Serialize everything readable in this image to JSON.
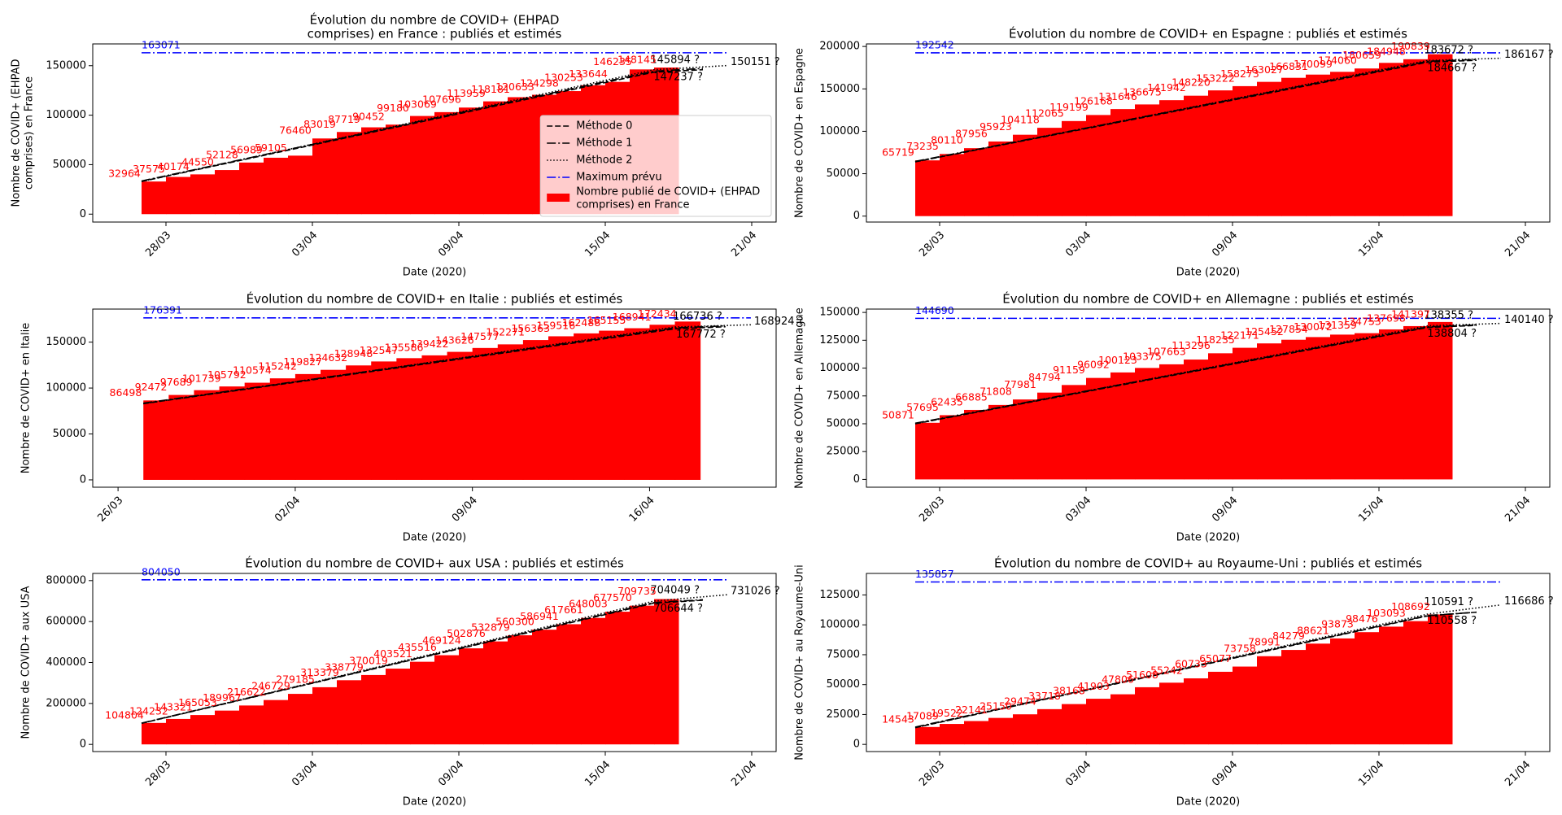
{
  "chart_data": [
    {
      "type": "bar",
      "title": [
        "Évolution du nombre de COVID+ (EHPAD",
        "comprises) en France : publiés et estimés"
      ],
      "xlabel": "Date (2020)",
      "ylabel": [
        "Nombre de COVID+ (EHPAD",
        "comprises) en France"
      ],
      "x": [
        "27/03",
        "28/03",
        "29/03",
        "30/03",
        "31/03",
        "01/04",
        "02/04",
        "03/04",
        "04/04",
        "05/04",
        "06/04",
        "07/04",
        "08/04",
        "09/04",
        "10/04",
        "11/04",
        "12/04",
        "13/04",
        "14/04",
        "15/04",
        "16/04",
        "17/04"
      ],
      "xlim": [
        "25/03",
        "22/04"
      ],
      "xticks": [
        "28/03",
        "03/04",
        "09/04",
        "15/04",
        "21/04"
      ],
      "ylim": [
        -8000,
        172000
      ],
      "yticks": [
        0,
        50000,
        100000,
        150000
      ],
      "legend": "center right",
      "max_line": {
        "name": "Maximum prévu",
        "color": "#0000ff",
        "value": 163071,
        "x": [
          "27/03",
          "20/04"
        ]
      },
      "series": [
        {
          "name": [
            "Nombre publié de COVID+ (EHPAD",
            "comprises) en France"
          ],
          "color": "#ff0000",
          "values": [
            32964,
            37575,
            40174,
            44550,
            52128,
            56989,
            59105,
            76460,
            83019,
            87719,
            90452,
            99180,
            103069,
            107696,
            113959,
            118181,
            120633,
            124298,
            130253,
            133644,
            146235,
            148145
          ]
        },
        {
          "name": "Méthode 0",
          "color": "#000000",
          "style": "dashed",
          "x": [
            "27/03",
            "17/04",
            "19/04"
          ],
          "values": [
            33000,
            143500,
            145894
          ],
          "value_labels": [
            null,
            null,
            "145894 ?"
          ]
        },
        {
          "name": "Méthode 1",
          "color": "#000000",
          "style": "dashdot",
          "x": [
            "27/03",
            "17/04",
            "19/04"
          ],
          "values": [
            33500,
            144500,
            147237
          ],
          "value_labels": [
            null,
            null,
            "147237 ?"
          ]
        },
        {
          "name": "Méthode 2",
          "color": "#000000",
          "style": "dotted",
          "x": [
            "27/03",
            "17/04",
            "20/04"
          ],
          "values": [
            33000,
            146000,
            150151
          ],
          "value_labels": [
            null,
            null,
            "150151 ?"
          ]
        }
      ]
    },
    {
      "type": "bar",
      "title": [
        "Évolution du nombre de COVID+  en Espagne : publiés et estimés"
      ],
      "xlabel": "Date (2020)",
      "ylabel": [
        "Nombre de COVID+  en Espagne"
      ],
      "x": [
        "27/03",
        "28/03",
        "29/03",
        "30/03",
        "31/03",
        "01/04",
        "02/04",
        "03/04",
        "04/04",
        "05/04",
        "06/04",
        "07/04",
        "08/04",
        "09/04",
        "10/04",
        "11/04",
        "12/04",
        "13/04",
        "14/04",
        "15/04",
        "16/04",
        "17/04"
      ],
      "xlim": [
        "25/03",
        "22/04"
      ],
      "xticks": [
        "28/03",
        "03/04",
        "09/04",
        "15/04",
        "21/04"
      ],
      "ylim": [
        -7000,
        203000
      ],
      "yticks": [
        0,
        50000,
        100000,
        150000,
        200000
      ],
      "max_line": {
        "name": "Maximum prévu",
        "color": "#0000ff",
        "value": 192542,
        "x": [
          "27/03",
          "20/04"
        ]
      },
      "series": [
        {
          "name": "Nombre publié de COVID+",
          "color": "#ff0000",
          "values": [
            65719,
            73235,
            80110,
            87956,
            95923,
            104118,
            112065,
            119199,
            126168,
            131646,
            136675,
            141942,
            148220,
            153222,
            158273,
            163027,
            166831,
            170099,
            174060,
            180659,
            184948,
            190839
          ]
        },
        {
          "name": "Méthode 0",
          "color": "#000000",
          "style": "dashed",
          "x": [
            "27/03",
            "17/04",
            "19/04"
          ],
          "values": [
            64000,
            181500,
            183672
          ],
          "value_labels": [
            null,
            null,
            "183672 ?"
          ]
        },
        {
          "name": "Méthode 1",
          "color": "#000000",
          "style": "dashdot",
          "x": [
            "27/03",
            "17/04",
            "19/04"
          ],
          "values": [
            64500,
            182500,
            184667
          ],
          "value_labels": [
            null,
            null,
            "184667 ?"
          ]
        },
        {
          "name": "Méthode 2",
          "color": "#000000",
          "style": "dotted",
          "x": [
            "27/03",
            "17/04",
            "20/04"
          ],
          "values": [
            64000,
            183500,
            186167
          ],
          "value_labels": [
            null,
            null,
            "186167 ?"
          ]
        }
      ]
    },
    {
      "type": "bar",
      "title": [
        "Évolution du nombre de COVID+ en Italie : publiés et estimés"
      ],
      "xlabel": "Date (2020)",
      "ylabel": [
        "Nombre de COVID+ en Italie"
      ],
      "x": [
        "27/03",
        "28/03",
        "29/03",
        "30/03",
        "31/03",
        "01/04",
        "02/04",
        "03/04",
        "04/04",
        "05/04",
        "06/04",
        "07/04",
        "08/04",
        "09/04",
        "10/04",
        "11/04",
        "12/04",
        "13/04",
        "14/04",
        "15/04",
        "16/04",
        "17/04"
      ],
      "xlim": [
        "25/03",
        "21/04"
      ],
      "xticks": [
        "26/03",
        "02/04",
        "09/04",
        "16/04"
      ],
      "ylim": [
        -8000,
        186000
      ],
      "yticks": [
        0,
        50000,
        100000,
        150000
      ],
      "max_line": {
        "name": "Maximum prévu",
        "color": "#0000ff",
        "value": 176391,
        "x": [
          "27/03",
          "20/04"
        ]
      },
      "series": [
        {
          "name": "Nombre publié de COVID+",
          "color": "#ff0000",
          "values": [
            86498,
            92472,
            97689,
            101739,
            105792,
            110574,
            115242,
            119827,
            124632,
            128948,
            132547,
            135586,
            139422,
            143626,
            147577,
            152271,
            156363,
            159516,
            162488,
            165155,
            168941,
            172434
          ]
        },
        {
          "name": "Méthode 0",
          "color": "#000000",
          "style": "dashed",
          "x": [
            "27/03",
            "17/04",
            "19/04"
          ],
          "values": [
            83000,
            164500,
            166736
          ],
          "value_labels": [
            null,
            null,
            "166736 ?"
          ]
        },
        {
          "name": "Méthode 1",
          "color": "#000000",
          "style": "dashdot",
          "x": [
            "27/03",
            "17/04",
            "19/04"
          ],
          "values": [
            83500,
            165500,
            167772
          ],
          "value_labels": [
            null,
            null,
            "167772 ?"
          ]
        },
        {
          "name": "Méthode 2",
          "color": "#000000",
          "style": "dotted",
          "x": [
            "27/03",
            "17/04",
            "20/04"
          ],
          "values": [
            83000,
            166500,
            168924
          ],
          "value_labels": [
            null,
            null,
            "168924 ?"
          ]
        }
      ]
    },
    {
      "type": "bar",
      "title": [
        "Évolution du nombre de COVID+ en Allemagne : publiés et estimés"
      ],
      "xlabel": "Date (2020)",
      "ylabel": [
        "Nombre de COVID+ en Allemagne"
      ],
      "x": [
        "27/03",
        "28/03",
        "29/03",
        "30/03",
        "31/03",
        "01/04",
        "02/04",
        "03/04",
        "04/04",
        "05/04",
        "06/04",
        "07/04",
        "08/04",
        "09/04",
        "10/04",
        "11/04",
        "12/04",
        "13/04",
        "14/04",
        "15/04",
        "16/04",
        "17/04"
      ],
      "xlim": [
        "25/03",
        "22/04"
      ],
      "xticks": [
        "28/03",
        "03/04",
        "09/04",
        "15/04",
        "21/04"
      ],
      "ylim": [
        -7000,
        153000
      ],
      "yticks": [
        0,
        25000,
        50000,
        75000,
        100000,
        125000,
        150000
      ],
      "max_line": {
        "name": "Maximum prévu",
        "color": "#0000ff",
        "value": 144690,
        "x": [
          "27/03",
          "20/04"
        ]
      },
      "series": [
        {
          "name": "Nombre publié de COVID+",
          "color": "#ff0000",
          "values": [
            50871,
            57695,
            62435,
            66885,
            71808,
            77981,
            84794,
            91159,
            96092,
            100123,
            103375,
            107663,
            113296,
            118235,
            122171,
            125452,
            127854,
            130072,
            131359,
            134753,
            137698,
            141397
          ]
        },
        {
          "name": "Méthode 0",
          "color": "#000000",
          "style": "dashed",
          "x": [
            "27/03",
            "17/04",
            "19/04"
          ],
          "values": [
            50000,
            136500,
            138355
          ],
          "value_labels": [
            null,
            null,
            "138355 ?"
          ]
        },
        {
          "name": "Méthode 1",
          "color": "#000000",
          "style": "dashdot",
          "x": [
            "27/03",
            "17/04",
            "19/04"
          ],
          "values": [
            50500,
            137000,
            138804
          ],
          "value_labels": [
            null,
            null,
            "138804 ?"
          ]
        },
        {
          "name": "Méthode 2",
          "color": "#000000",
          "style": "dotted",
          "x": [
            "27/03",
            "17/04",
            "20/04"
          ],
          "values": [
            50000,
            138000,
            140140
          ],
          "value_labels": [
            null,
            null,
            "140140 ?"
          ]
        }
      ]
    },
    {
      "type": "bar",
      "title": [
        "Évolution du nombre de COVID+ aux USA : publiés et estimés"
      ],
      "xlabel": "Date (2020)",
      "ylabel": [
        "Nombre de COVID+ aux USA"
      ],
      "x": [
        "27/03",
        "28/03",
        "29/03",
        "30/03",
        "31/03",
        "01/04",
        "02/04",
        "03/04",
        "04/04",
        "05/04",
        "06/04",
        "07/04",
        "08/04",
        "09/04",
        "10/04",
        "11/04",
        "12/04",
        "13/04",
        "14/04",
        "15/04",
        "16/04",
        "17/04"
      ],
      "xlim": [
        "25/03",
        "22/04"
      ],
      "xticks": [
        "28/03",
        "03/04",
        "09/04",
        "15/04",
        "21/04"
      ],
      "ylim": [
        -35000,
        835000
      ],
      "yticks": [
        0,
        200000,
        400000,
        600000,
        800000
      ],
      "max_line": {
        "name": "Maximum prévu",
        "color": "#0000ff",
        "value": 804050,
        "x": [
          "27/03",
          "20/04"
        ]
      },
      "series": [
        {
          "name": "Nombre publié de COVID+",
          "color": "#ff0000",
          "values": [
            104804,
            124232,
            143321,
            165053,
            189967,
            216622,
            246729,
            279185,
            313379,
            338779,
            370019,
            403521,
            435516,
            469124,
            502876,
            532879,
            560300,
            586941,
            617661,
            648003,
            677570,
            709735
          ]
        },
        {
          "name": "Méthode 0",
          "color": "#000000",
          "style": "dashed",
          "x": [
            "27/03",
            "17/04",
            "19/04"
          ],
          "values": [
            103000,
            690000,
            704049
          ],
          "value_labels": [
            null,
            null,
            "704049 ?"
          ]
        },
        {
          "name": "Méthode 1",
          "color": "#000000",
          "style": "dashdot",
          "x": [
            "27/03",
            "17/04",
            "19/04"
          ],
          "values": [
            104000,
            693000,
            706644
          ],
          "value_labels": [
            null,
            null,
            "706644 ?"
          ]
        },
        {
          "name": "Méthode 2",
          "color": "#000000",
          "style": "dotted",
          "x": [
            "27/03",
            "17/04",
            "20/04"
          ],
          "values": [
            103000,
            700000,
            731026
          ],
          "value_labels": [
            null,
            null,
            "731026 ?"
          ]
        }
      ]
    },
    {
      "type": "bar",
      "title": [
        "Évolution du nombre de COVID+ au Royaume-Uni : publiés et estimés"
      ],
      "xlabel": "Date (2020)",
      "ylabel": [
        "Nombre de COVID+ au Royaume-Uni"
      ],
      "x": [
        "27/03",
        "28/03",
        "29/03",
        "30/03",
        "31/03",
        "01/04",
        "02/04",
        "03/04",
        "04/04",
        "05/04",
        "06/04",
        "07/04",
        "08/04",
        "09/04",
        "10/04",
        "11/04",
        "12/04",
        "13/04",
        "14/04",
        "15/04",
        "16/04",
        "17/04"
      ],
      "xlim": [
        "25/03",
        "22/04"
      ],
      "xticks": [
        "28/03",
        "03/04",
        "09/04",
        "15/04",
        "21/04"
      ],
      "ylim": [
        -6000,
        143000
      ],
      "yticks": [
        0,
        25000,
        50000,
        75000,
        100000,
        125000
      ],
      "max_line": {
        "name": "Maximum prévu",
        "color": "#0000ff",
        "value": 135857,
        "x": [
          "27/03",
          "20/04"
        ]
      },
      "series": [
        {
          "name": "Nombre publié de COVID+",
          "color": "#ff0000",
          "values": [
            14543,
            17089,
            19522,
            22141,
            25150,
            29474,
            33718,
            38168,
            41903,
            47806,
            51608,
            55242,
            60733,
            65077,
            73758,
            78991,
            84279,
            88621,
            93873,
            98476,
            103093,
            108692
          ]
        },
        {
          "name": "Méthode 0",
          "color": "#000000",
          "style": "dashed",
          "x": [
            "27/03",
            "17/04",
            "19/04"
          ],
          "values": [
            14000,
            107500,
            110591
          ],
          "value_labels": [
            null,
            null,
            "110591 ?"
          ]
        },
        {
          "name": "Méthode 1",
          "color": "#000000",
          "style": "dashdot",
          "x": [
            "27/03",
            "17/04",
            "19/04"
          ],
          "values": [
            14500,
            107800,
            110558
          ],
          "value_labels": [
            null,
            null,
            "110558 ?"
          ]
        },
        {
          "name": "Méthode 2",
          "color": "#000000",
          "style": "dotted",
          "x": [
            "27/03",
            "17/04",
            "20/04"
          ],
          "values": [
            14000,
            109000,
            116686
          ],
          "value_labels": [
            null,
            null,
            "116686 ?"
          ]
        }
      ]
    }
  ]
}
